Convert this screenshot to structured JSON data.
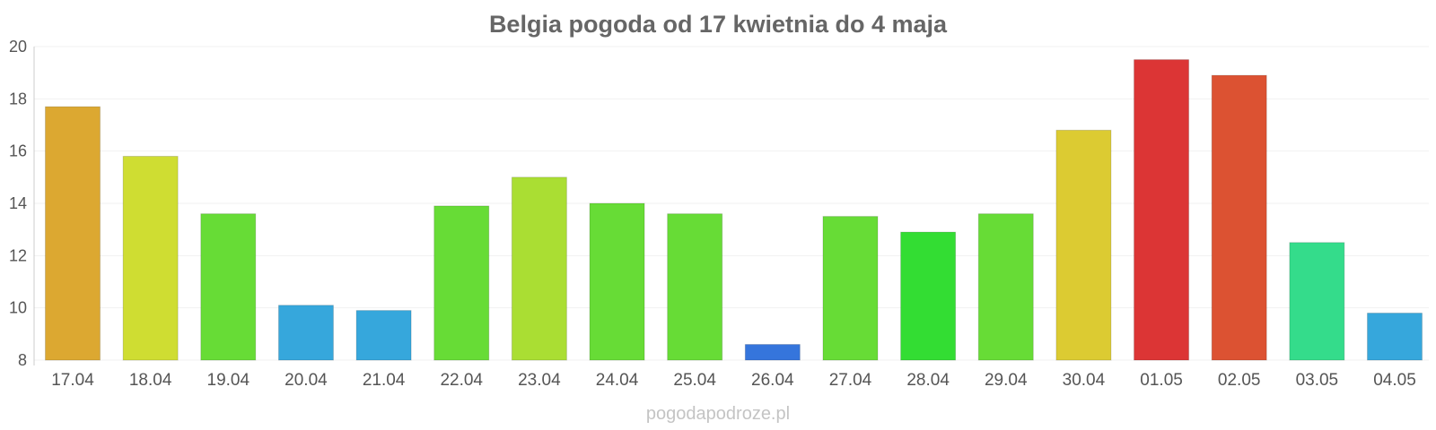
{
  "chart_data": {
    "type": "bar",
    "title": "Belgia pogoda od 17 kwietnia do 4 maja",
    "xlabel": "",
    "ylabel": "",
    "ylim": [
      8,
      20
    ],
    "yticks": [
      8,
      10,
      12,
      14,
      16,
      18,
      20
    ],
    "grid": true,
    "categories": [
      "17.04",
      "18.04",
      "19.04",
      "20.04",
      "21.04",
      "22.04",
      "23.04",
      "24.04",
      "25.04",
      "26.04",
      "27.04",
      "28.04",
      "29.04",
      "30.04",
      "01.05",
      "02.05",
      "03.05",
      "04.05"
    ],
    "values": [
      17.7,
      15.8,
      13.6,
      10.1,
      9.9,
      13.9,
      15.0,
      14.0,
      13.6,
      8.6,
      13.5,
      12.9,
      13.6,
      16.8,
      19.5,
      18.9,
      12.5,
      9.8
    ],
    "colors": [
      "#dca831",
      "#cfdd32",
      "#67dc36",
      "#36a7dc",
      "#36a7dc",
      "#67dc36",
      "#aade33",
      "#67dc36",
      "#67dc36",
      "#3575dc",
      "#67dc36",
      "#33dd33",
      "#67dc36",
      "#dccb32",
      "#dc3535",
      "#dc5232",
      "#34dc8b",
      "#36a7dc"
    ]
  },
  "watermark": "pogodapodroze.pl"
}
